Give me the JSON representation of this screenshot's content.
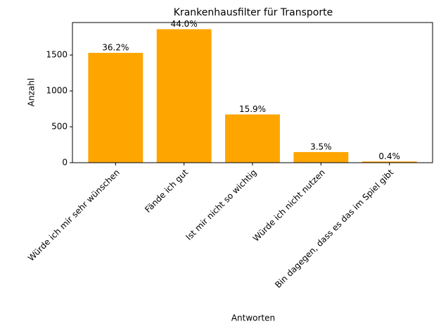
{
  "chart_data": {
    "type": "bar",
    "title": "Krankenhausfilter für Transporte",
    "x_label": "Antworten",
    "y_label": "Anzahl",
    "categories": [
      "Würde ich mir sehr wünschen",
      "Fände ich gut",
      "Ist mir nicht so wichtig",
      "Würde ich nicht nutzen",
      "Bin dagegen, dass es das im Spiel gibt"
    ],
    "values": [
      1530,
      1860,
      672,
      148,
      17
    ],
    "percentages": [
      36.2,
      44.0,
      15.9,
      3.5,
      0.4
    ],
    "percentage_labels": [
      "36.2%",
      "44.0%",
      "15.9%",
      "3.5%",
      "0.4%"
    ],
    "color": "#ffa500",
    "ylim": [
      0,
      1953
    ],
    "yticks": [
      0,
      500,
      1000,
      1500
    ]
  }
}
